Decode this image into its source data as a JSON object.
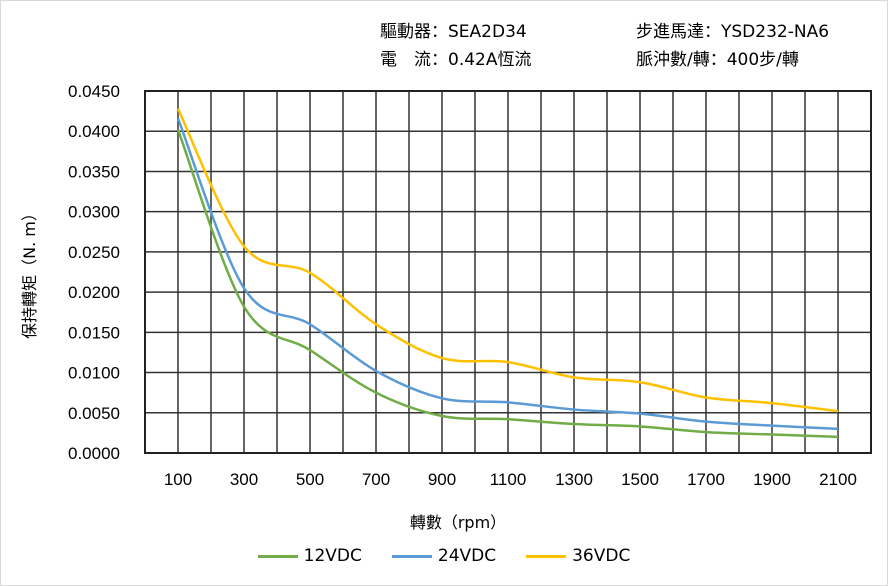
{
  "header": {
    "driver_label": "驅動器：",
    "driver_value": "SEA2D34",
    "motor_label": "步進馬達：",
    "motor_value": "YSD232-NA6",
    "current_label": "電　流：",
    "current_value": "0.42A恆流",
    "pulse_label": "脈沖數/轉：",
    "pulse_value": "400步/轉"
  },
  "chart_data": {
    "type": "line",
    "title": "",
    "xlabel": "轉數（rpm）",
    "ylabel": "保持轉矩（N. m）",
    "xlim": [
      0,
      2200
    ],
    "ylim": [
      0,
      0.045
    ],
    "grid": true,
    "x_ticks": [
      100,
      300,
      500,
      700,
      900,
      1100,
      1300,
      1500,
      1700,
      1900,
      2100
    ],
    "y_ticks": [
      "0.0000",
      "0.0050",
      "0.0100",
      "0.0150",
      "0.0200",
      "0.0250",
      "0.0300",
      "0.0350",
      "0.0400",
      "0.0450"
    ],
    "legend_position": "bottom",
    "x": [
      100,
      300,
      500,
      700,
      900,
      1100,
      1300,
      1500,
      1700,
      1900,
      2100
    ],
    "series": [
      {
        "name": "12VDC",
        "color": "#70ad47",
        "values": [
          0.0402,
          0.0182,
          0.0128,
          0.0075,
          0.0046,
          0.0042,
          0.0036,
          0.0033,
          0.0026,
          0.0023,
          0.002
        ]
      },
      {
        "name": "24VDC",
        "color": "#5b9bd5",
        "values": [
          0.0416,
          0.0205,
          0.016,
          0.0102,
          0.0068,
          0.0063,
          0.0054,
          0.0049,
          0.0039,
          0.0034,
          0.003
        ]
      },
      {
        "name": "36VDC",
        "color": "#ffc000",
        "values": [
          0.0428,
          0.0257,
          0.0224,
          0.016,
          0.0118,
          0.0113,
          0.0094,
          0.0088,
          0.0069,
          0.0062,
          0.0052
        ]
      }
    ]
  }
}
